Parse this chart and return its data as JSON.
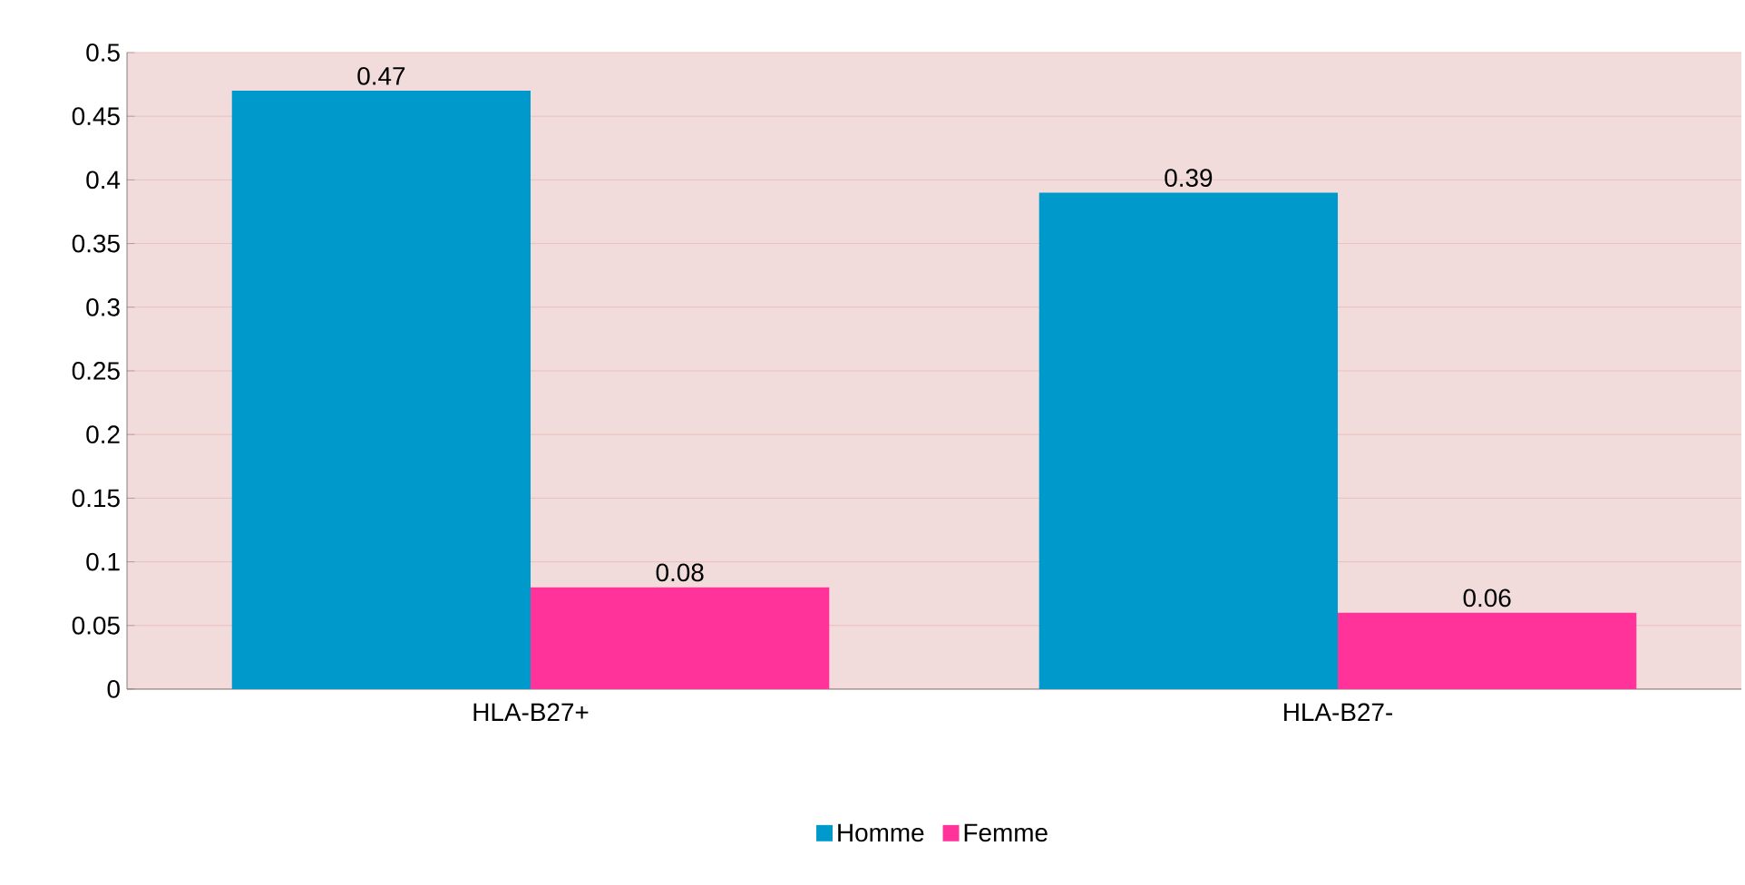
{
  "chart_data": {
    "type": "bar",
    "categories": [
      "HLA-B27+",
      "HLA-B27-"
    ],
    "series": [
      {
        "name": "Homme",
        "color": "#0099cc",
        "values": [
          0.47,
          0.39
        ]
      },
      {
        "name": "Femme",
        "color": "#ff3399",
        "values": [
          0.08,
          0.06
        ]
      }
    ],
    "ylim": [
      0,
      0.5
    ],
    "yticks": [
      0,
      0.05,
      0.1,
      0.15,
      0.2,
      0.25,
      0.3,
      0.35,
      0.4,
      0.45,
      0.5
    ],
    "grid": "y",
    "legend": "bottom",
    "data_labels": true
  }
}
